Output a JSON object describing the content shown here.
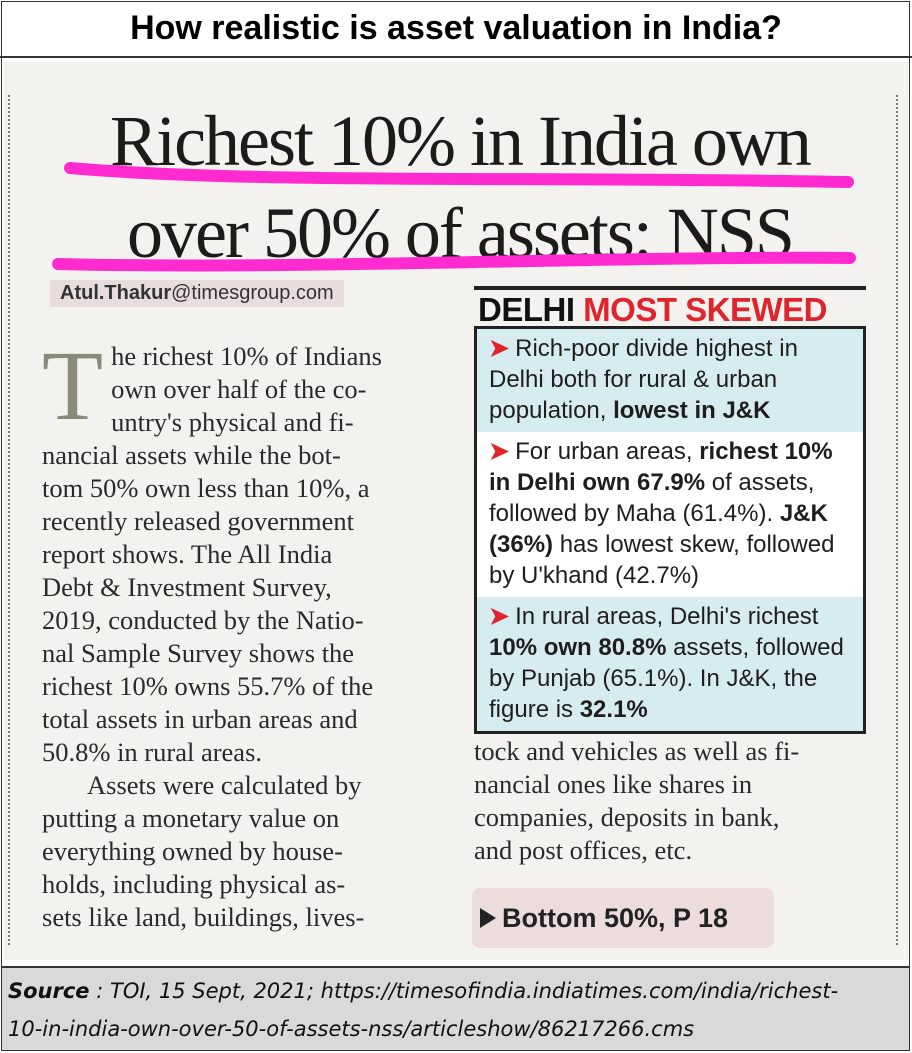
{
  "page_title": "How realistic is asset valuation in India?",
  "headline": {
    "lines": [
      "Richest 10% in India own",
      "over 50% of assets: NSS"
    ],
    "highlight_color": "#ff2bd0"
  },
  "byline": {
    "name": "Atul.Thakur",
    "email": "@timesgroup.com"
  },
  "article": {
    "dropcap": "T",
    "para1_lines": [
      "he richest 10% of Indians",
      "own over half of the co-",
      "untry's physical and fi-",
      "nancial assets while the bot-",
      "tom 50% own less than 10%, a",
      "recently released government",
      "report shows. The All India",
      "Debt & Investment Survey,",
      "2019, conducted by the Natio-",
      "nal Sample Survey shows the",
      "richest 10% owns 55.7% of the",
      "total assets in urban areas and",
      "50.8% in rural areas."
    ],
    "para2_lines": [
      "Assets were calculated by",
      "putting a monetary value on",
      "everything owned by house-",
      "holds, including physical as-",
      "sets like land, buildings, lives-"
    ],
    "continuation_lines": [
      "tock and vehicles as well as fi-",
      "nancial ones like shares in",
      "companies, deposits in bank,",
      "and post offices, etc."
    ]
  },
  "sidebar": {
    "title_black": "DELHI ",
    "title_red": "MOST SKEWED",
    "arrow": "➤",
    "item1": {
      "t1": "Rich-poor divide highest in Delhi both for rural & urban population, ",
      "b1": "lowest in J&K"
    },
    "item2": {
      "t1": "For urban areas, ",
      "b1": "richest 10% in Delhi own 67.9%",
      "t2": " of assets, followed by Maha (61.4%). ",
      "b2": "J&K (36%)",
      "t3": " has lowest skew, followed by U'khand (42.7%)"
    },
    "item3": {
      "t1": "In rural areas, Delhi's richest ",
      "b1": "10% own 80.8%",
      "t2": " assets, followed by Punjab (65.1%). In J&K, the figure is ",
      "b2": "32.1%"
    }
  },
  "pointer": "Bottom 50%, P 18",
  "source": {
    "label": "Source",
    "text_line1": " : TOI, 15 Sept, 2021; https://timesofindia.indiatimes.com/india/richest-",
    "text_line2": "10-in-india-own-over-50-of-assets-nss/articleshow/86217266.cms"
  },
  "colors": {
    "accent_red": "#e0242c",
    "sidebar_tint": "#d6ecf1",
    "highlight_magenta": "#ff2bd0"
  }
}
